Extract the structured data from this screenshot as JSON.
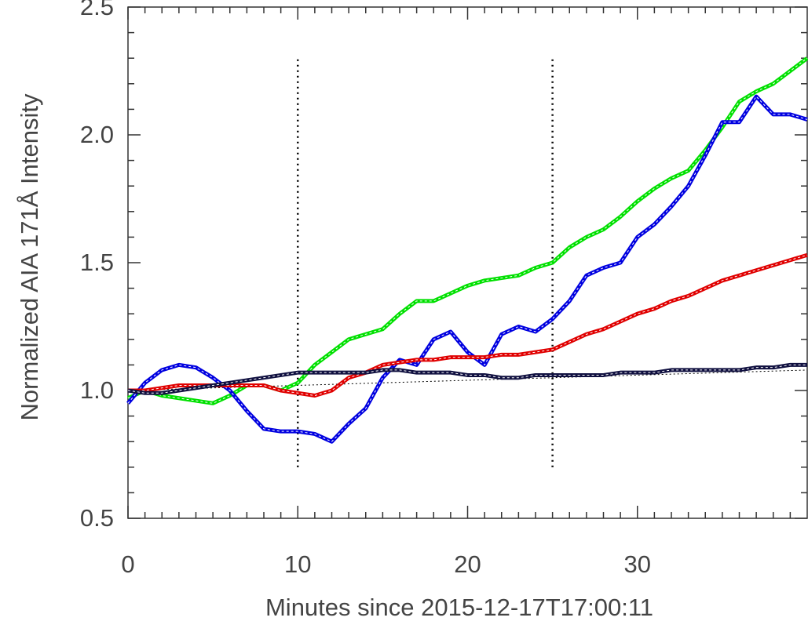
{
  "chart_data": {
    "type": "line",
    "xlabel": "Minutes since 2015-12-17T17:00:11",
    "ylabel": "Normalized AIA 171Å Intensity",
    "x": [
      0,
      1,
      2,
      3,
      4,
      5,
      6,
      7,
      8,
      9,
      10,
      11,
      12,
      13,
      14,
      15,
      16,
      17,
      18,
      19,
      20,
      21,
      22,
      23,
      24,
      25,
      26,
      27,
      28,
      29,
      30,
      31,
      32,
      33,
      34,
      35,
      36,
      37,
      38,
      39,
      40
    ],
    "series": [
      {
        "color": "#00e000",
        "values": [
          0.97,
          1.0,
          0.98,
          0.97,
          0.96,
          0.95,
          0.98,
          1.02,
          1.02,
          1.0,
          1.03,
          1.1,
          1.15,
          1.2,
          1.22,
          1.24,
          1.3,
          1.35,
          1.35,
          1.38,
          1.41,
          1.43,
          1.44,
          1.45,
          1.48,
          1.5,
          1.56,
          1.6,
          1.63,
          1.68,
          1.74,
          1.79,
          1.83,
          1.86,
          1.94,
          2.03,
          2.13,
          2.17,
          2.2,
          2.25,
          2.3
        ]
      },
      {
        "color": "#0000e0",
        "values": [
          0.95,
          1.03,
          1.08,
          1.1,
          1.09,
          1.05,
          1.0,
          0.92,
          0.85,
          0.84,
          0.84,
          0.83,
          0.8,
          0.87,
          0.93,
          1.05,
          1.12,
          1.1,
          1.2,
          1.23,
          1.15,
          1.1,
          1.22,
          1.25,
          1.23,
          1.28,
          1.35,
          1.45,
          1.48,
          1.5,
          1.6,
          1.65,
          1.72,
          1.8,
          1.92,
          2.05,
          2.05,
          2.15,
          2.08,
          2.08,
          2.06
        ]
      },
      {
        "color": "#e00000",
        "values": [
          1.0,
          1.0,
          1.01,
          1.02,
          1.02,
          1.02,
          1.02,
          1.02,
          1.02,
          1.0,
          0.99,
          0.98,
          1.0,
          1.05,
          1.07,
          1.1,
          1.11,
          1.12,
          1.12,
          1.13,
          1.13,
          1.13,
          1.14,
          1.14,
          1.15,
          1.16,
          1.19,
          1.22,
          1.24,
          1.27,
          1.3,
          1.32,
          1.35,
          1.37,
          1.4,
          1.43,
          1.45,
          1.47,
          1.49,
          1.51,
          1.53
        ]
      },
      {
        "color": "#101040",
        "values": [
          1.0,
          0.99,
          0.99,
          1.0,
          1.01,
          1.02,
          1.03,
          1.04,
          1.05,
          1.06,
          1.07,
          1.07,
          1.07,
          1.07,
          1.07,
          1.08,
          1.08,
          1.07,
          1.07,
          1.07,
          1.06,
          1.06,
          1.05,
          1.05,
          1.06,
          1.06,
          1.06,
          1.06,
          1.06,
          1.07,
          1.07,
          1.07,
          1.08,
          1.08,
          1.08,
          1.08,
          1.08,
          1.09,
          1.09,
          1.1,
          1.1
        ]
      }
    ],
    "trend": {
      "x": [
        0,
        40
      ],
      "values": [
        1.0,
        1.08
      ]
    },
    "vlines": [
      10,
      25
    ],
    "vline_range": [
      0.7,
      2.3
    ],
    "xlim": [
      0,
      40
    ],
    "ylim": [
      0.5,
      2.5
    ],
    "xticks": [
      0,
      10,
      20,
      30
    ],
    "yticks": [
      0.5,
      {
        "value": 1,
        "label": "1.0"
      },
      1.5,
      {
        "value": 2,
        "label": "2.0"
      },
      2.5
    ],
    "xminorticks": [
      1,
      2,
      3,
      4,
      5,
      6,
      7,
      8,
      9,
      11,
      12,
      13,
      14,
      15,
      16,
      17,
      18,
      19,
      21,
      22,
      23,
      24,
      25,
      26,
      27,
      28,
      29,
      31,
      32,
      33,
      34,
      35,
      36,
      37,
      38,
      39
    ],
    "yminorticks": [
      0.6,
      0.7,
      0.8,
      0.9,
      1.1,
      1.2,
      1.3,
      1.4,
      1.6,
      1.7,
      1.8,
      1.9,
      2.1,
      2.2,
      2.3,
      2.4
    ]
  }
}
